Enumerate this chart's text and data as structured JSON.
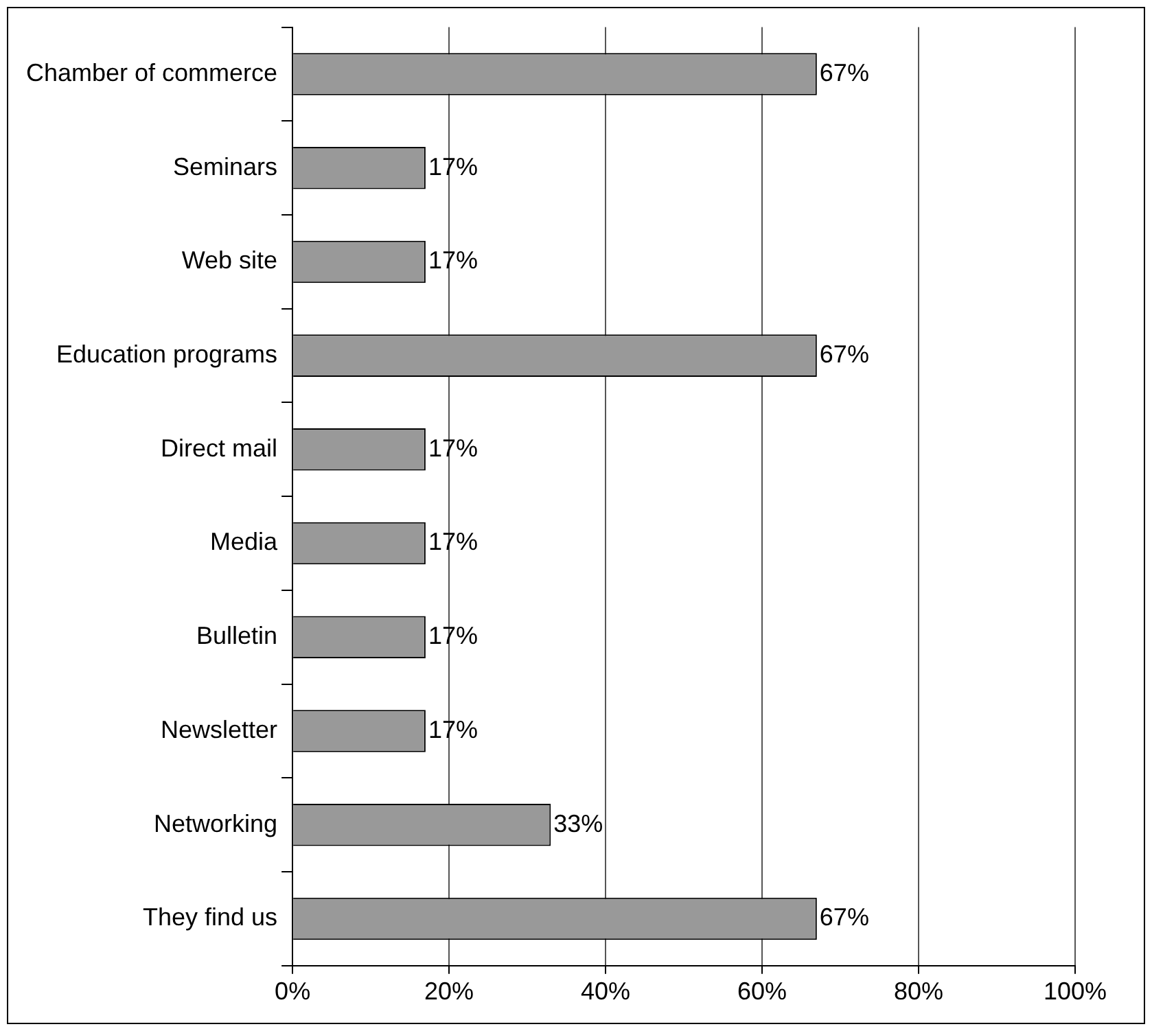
{
  "chart_data": {
    "type": "bar",
    "orientation": "horizontal",
    "categories": [
      "Chamber of commerce",
      "Seminars",
      "Web site",
      "Education programs",
      "Direct mail",
      "Media",
      "Bulletin",
      "Newsletter",
      "Networking",
      "They find us"
    ],
    "values": [
      67,
      17,
      17,
      67,
      17,
      17,
      17,
      17,
      33,
      67
    ],
    "value_labels": [
      "67%",
      "17%",
      "17%",
      "67%",
      "17%",
      "17%",
      "17%",
      "17%",
      "33%",
      "67%"
    ],
    "color": "#999999",
    "xlim": [
      0,
      100
    ],
    "xticks": [
      {
        "value": 0,
        "label": "0%"
      },
      {
        "value": 20,
        "label": "20%"
      },
      {
        "value": 40,
        "label": "40%"
      },
      {
        "value": 60,
        "label": "60%"
      },
      {
        "value": 80,
        "label": "80%"
      },
      {
        "value": 100,
        "label": "100%"
      }
    ],
    "grid": "x",
    "legend": false
  }
}
